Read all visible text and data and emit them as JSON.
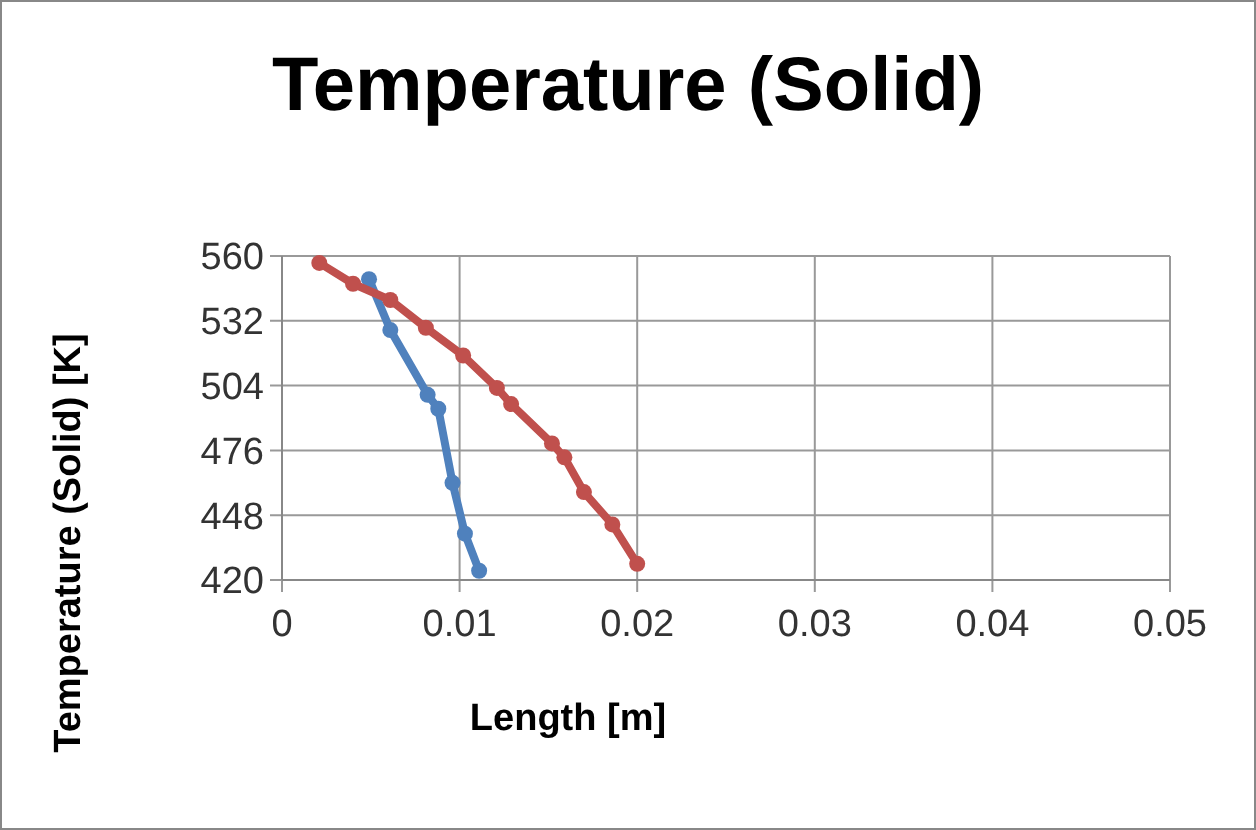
{
  "chart_data": {
    "type": "line",
    "title": "Temperature (Solid)",
    "xlabel": "Length [m]",
    "ylabel": "Temperature (Solid) [K]",
    "xlim": [
      0,
      0.05
    ],
    "xticks": [
      0,
      0.01,
      0.02,
      0.03,
      0.04,
      0.05
    ],
    "ylim": [
      420,
      560
    ],
    "yticks": [
      420,
      448,
      476,
      504,
      532,
      560
    ],
    "grid": true,
    "marker": "circle",
    "series": [
      {
        "color": "#4f81bd",
        "x": [
          0.0049,
          0.0061,
          0.0082,
          0.0088,
          0.0096,
          0.0103,
          0.0111
        ],
        "values": [
          550,
          528,
          500,
          494,
          462,
          440,
          424
        ]
      },
      {
        "color": "#c0504d",
        "x": [
          0.0021,
          0.004,
          0.0061,
          0.0081,
          0.0102,
          0.0121,
          0.0129,
          0.0152,
          0.0159,
          0.017,
          0.0186,
          0.02
        ],
        "values": [
          557,
          548,
          541,
          529,
          517,
          503,
          496,
          479,
          473,
          458,
          444,
          427
        ]
      }
    ]
  }
}
